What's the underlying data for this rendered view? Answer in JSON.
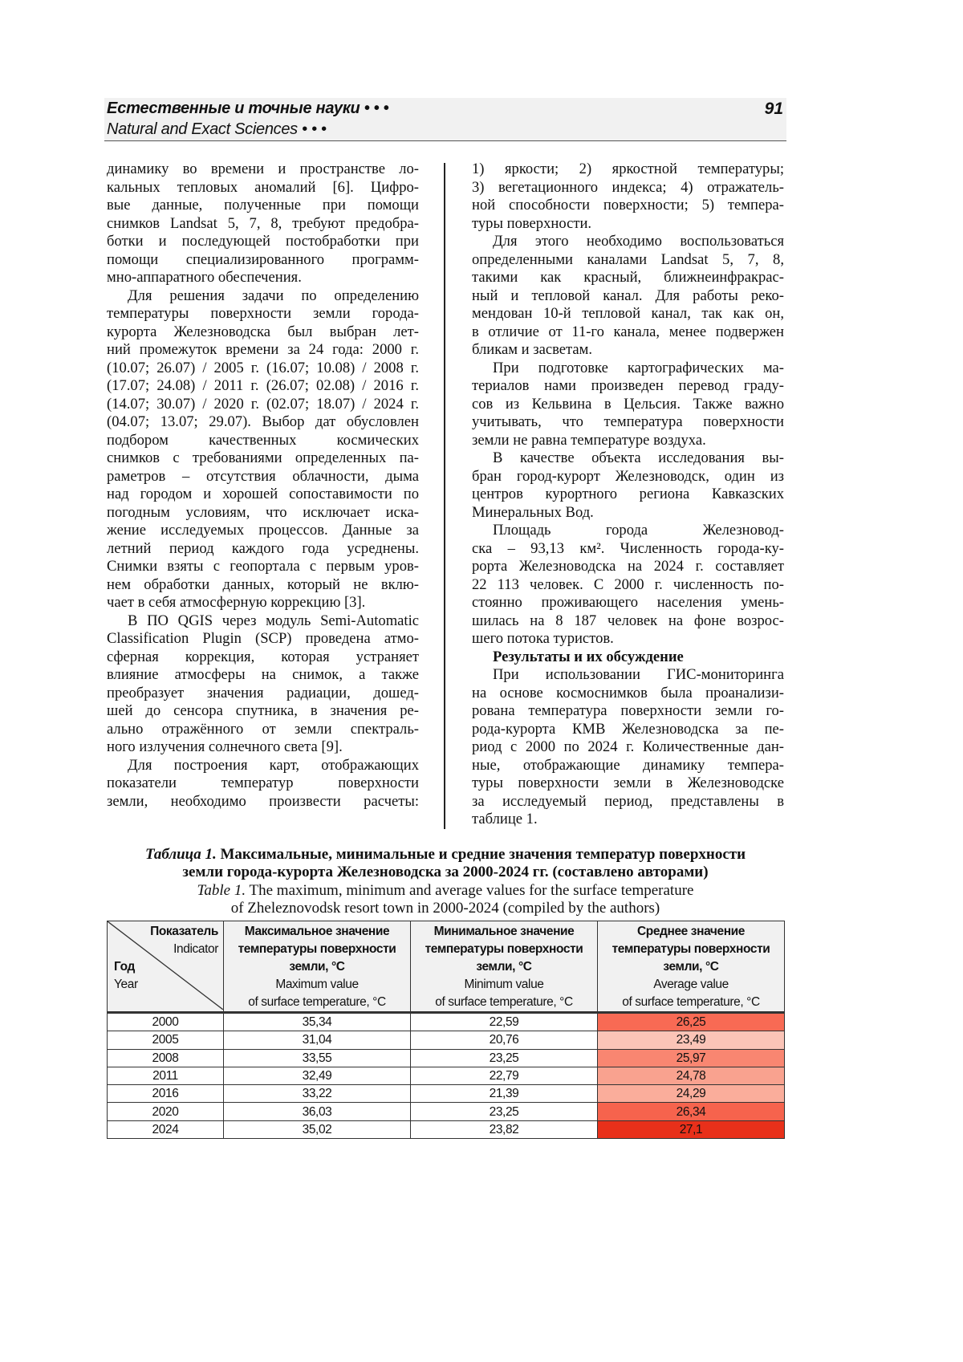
{
  "header": {
    "ru": "Естественные и точные науки • • •",
    "en": "Natural and Exact Sciences • • •",
    "page_number": "91"
  },
  "left_column": [
    {
      "indent": false,
      "lines": [
        "динамику во времени и пространстве ло-",
        "кальных тепловых аномалий [6]. Цифро-",
        "вые данные, полученные при помощи",
        "снимков Landsat 5, 7, 8, требуют предобра-",
        "ботки и последующей постобработки при",
        "помощи специализированного программ-",
        "мно-аппаратного обеспечения."
      ]
    },
    {
      "indent": true,
      "lines": [
        "Для решения задачи по определению",
        "температуры поверхности земли города-",
        "курорта Железноводска был выбран лет-",
        "ний промежуток времени за 24 года: 2000 г.",
        "(10.07; 26.07) / 2005 г. (16.07; 10.08) / 2008 г.",
        "(17.07; 24.08) / 2011 г. (26.07; 02.08) / 2016 г.",
        "(14.07; 30.07) / 2020 г. (02.07; 18.07) / 2024 г.",
        "(04.07; 13.07; 29.07). Выбор дат обусловлен",
        "подбором качественных космических",
        "снимков с требованиями определенных па-",
        "раметров – отсутствия облачности, дыма",
        "над городом и хорошей сопоставимости по",
        "погодным условиям, что исключает иска-",
        "жение исследуемых процессов. Данные за",
        "летний период каждого года усреднены.",
        "Снимки взяты с геопортала с первым уров-",
        "нем обработки данных, который не вклю-",
        "чает в себя атмосферную коррекцию [3]."
      ]
    },
    {
      "indent": true,
      "lines": [
        "В ПО QGIS через модуль Semi-Automatic",
        "Classification Plugin (SCP) проведена атмо-",
        "сферная коррекция, которая устраняет",
        "влияние атмосферы на снимок, а также",
        "преобразует значения радиации, дошед-",
        "шей до сенсора спутника, в значения ре-",
        "ально отражённого от земли спектраль-",
        "ного излучения солнечного света [9]."
      ]
    },
    {
      "indent": true,
      "continues": true,
      "lines": [
        "Для построения карт, отображающих",
        "показатели температур поверхности",
        "земли, необходимо произвести расчеты:"
      ]
    }
  ],
  "right_column": [
    {
      "indent": false,
      "lines": [
        "1) яркости; 2) яркостной температуры;",
        "3) вегетационного индекса; 4) отражатель-",
        "ной способности поверхности; 5) темпера-",
        "туры поверхности."
      ]
    },
    {
      "indent": true,
      "lines": [
        "Для этого необходимо воспользоваться",
        "определенными каналами Landsat 5, 7, 8,",
        "такими как красный, ближнеинфракрас-",
        "ный и тепловой канал. Для работы реко-",
        "мендован 10-й тепловой канал, так как он,",
        "в отличие от 11-го канала, менее подвержен",
        "бликам и засветам."
      ]
    },
    {
      "indent": true,
      "lines": [
        "При подготовке картографических ма-",
        "териалов нами произведен перевод граду-",
        "сов из Кельвина в Цельсия. Также важно",
        "учитывать, что температура поверхности",
        "земли не равна температуре воздуха."
      ]
    },
    {
      "indent": true,
      "lines": [
        "В качестве объекта исследования вы-",
        "бран город-курорт Железноводск, один из",
        "центров курортного региона Кавказских",
        "Минеральных Вод."
      ]
    },
    {
      "indent": true,
      "lines": [
        "Площадь города Железновод-",
        "ска – 93,13 км². Численность города-ку-",
        "рорта Железноводска на 2024 г. составляет",
        "22 113 человек. С 2000 г. численность по-",
        "стоянно проживающего населения умень-",
        "шилась на 8 187 человек на фоне возрос-",
        "шего потока туристов."
      ]
    },
    {
      "indent": true,
      "heading": true,
      "lines": [
        "Результаты и их обсуждение"
      ]
    },
    {
      "indent": true,
      "lines": [
        "При использовании ГИС-мониторинга",
        "на основе космоснимков была проанализи-",
        "рована температура поверхности земли го-",
        "рода-курорта КМВ Железноводска за пе-",
        "риод с 2000 по 2024 г. Количественные дан-",
        "ные, отображающие динамику темпера-",
        "туры поверхности земли в Железноводске",
        "за исследуемый период, представлены в",
        "таблице 1."
      ]
    }
  ],
  "caption": {
    "ru_label": "Таблица 1.",
    "ru_line1": " Максимальные, минимальные и средние значения температур поверхности",
    "ru_line2": "земли города-курорта Железноводска за 2000-2024 гг.  (составлено авторами)",
    "en_label": "Table 1.",
    "en_line1": " The maximum, minimum and average values for the surface temperature",
    "en_line2": "of Zheleznovodsk resort town in 2000-2024 (compiled by the authors)"
  },
  "table": {
    "corner": {
      "indicator_ru": "Показатель",
      "indicator_en": "Indicator",
      "year_ru": "Год",
      "year_en": "Year"
    },
    "columns": [
      {
        "ru": [
          "Максимальное значение",
          "температуры поверхности",
          "земли, °C"
        ],
        "en": [
          "Maximum value",
          "of surface temperature, °C"
        ]
      },
      {
        "ru": [
          "Минимальное значение",
          "температуры поверхности",
          "земли, °C"
        ],
        "en": [
          "Minimum value",
          "of surface temperature, °C"
        ]
      },
      {
        "ru": [
          "Среднее значение",
          "температуры поверхности",
          "земли, °C"
        ],
        "en": [
          "Average value",
          "of surface temperature, °C"
        ]
      }
    ],
    "rows": [
      {
        "year": "2000",
        "max": "35,34",
        "min": "22,59",
        "avg": "26,25",
        "avg_color": "#f86a54"
      },
      {
        "year": "2005",
        "max": "31,04",
        "min": "20,76",
        "avg": "23,49",
        "avg_color": "#fbc4b7"
      },
      {
        "year": "2008",
        "max": "33,55",
        "min": "23,25",
        "avg": "25,97",
        "avg_color": "#f98671"
      },
      {
        "year": "2011",
        "max": "32,49",
        "min": "22,79",
        "avg": "24,78",
        "avg_color": "#f9a28f"
      },
      {
        "year": "2016",
        "max": "33,22",
        "min": "21,39",
        "avg": "24,29",
        "avg_color": "#faad9b"
      },
      {
        "year": "2020",
        "max": "36,03",
        "min": "23,25",
        "avg": "26,34",
        "avg_color": "#f6634d"
      },
      {
        "year": "2024",
        "max": "35,02",
        "min": "23,82",
        "avg": "27,1",
        "avg_color": "#e8301a"
      }
    ]
  }
}
